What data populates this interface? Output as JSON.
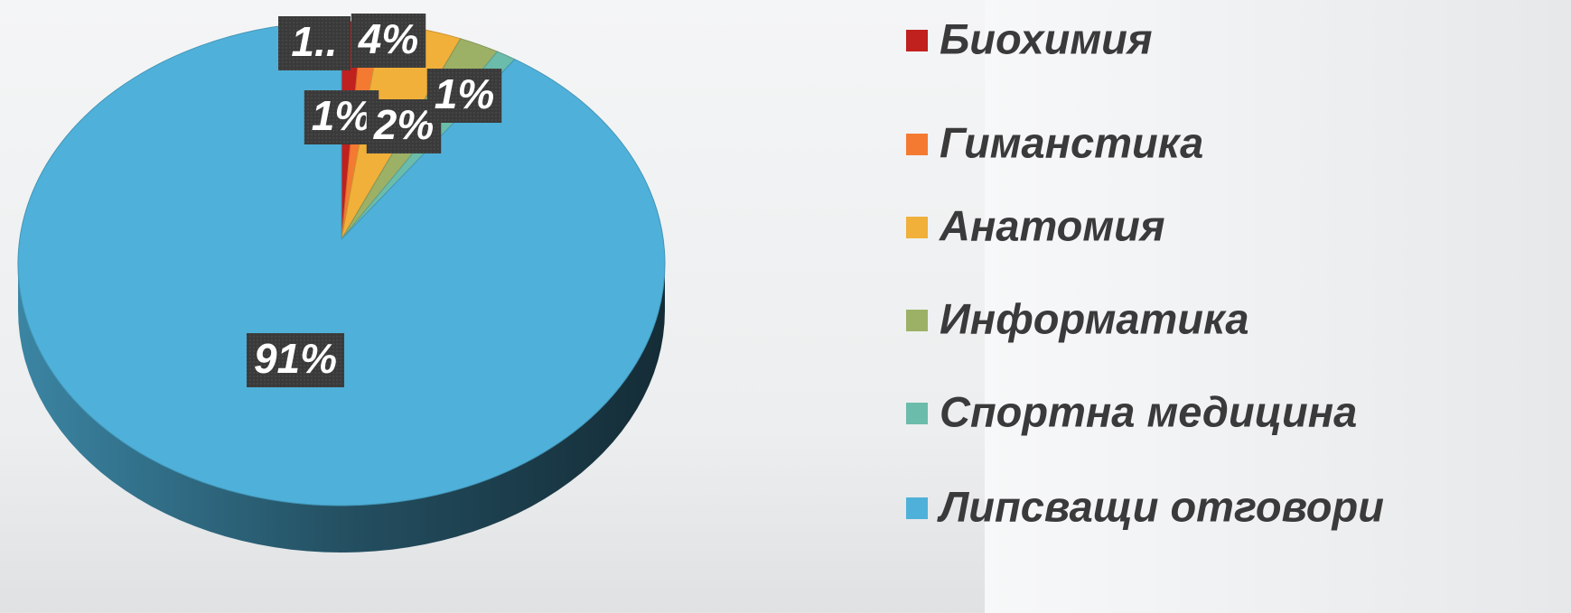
{
  "chart_data": {
    "type": "pie",
    "categories": [
      "Биохимия",
      "Гиманстика",
      "Анатомия",
      "Информатика",
      "Спортна медицина",
      "Липсващи отговори"
    ],
    "values": [
      1,
      1,
      4,
      2,
      1,
      91
    ],
    "value_labels": [
      "1..",
      "1%",
      "4%",
      "2%",
      "1%",
      "91%"
    ],
    "colors": [
      "#c0201e",
      "#f47a32",
      "#f0b03a",
      "#9cb066",
      "#6bbcaa",
      "#4fb1d9"
    ],
    "legend": "right"
  }
}
